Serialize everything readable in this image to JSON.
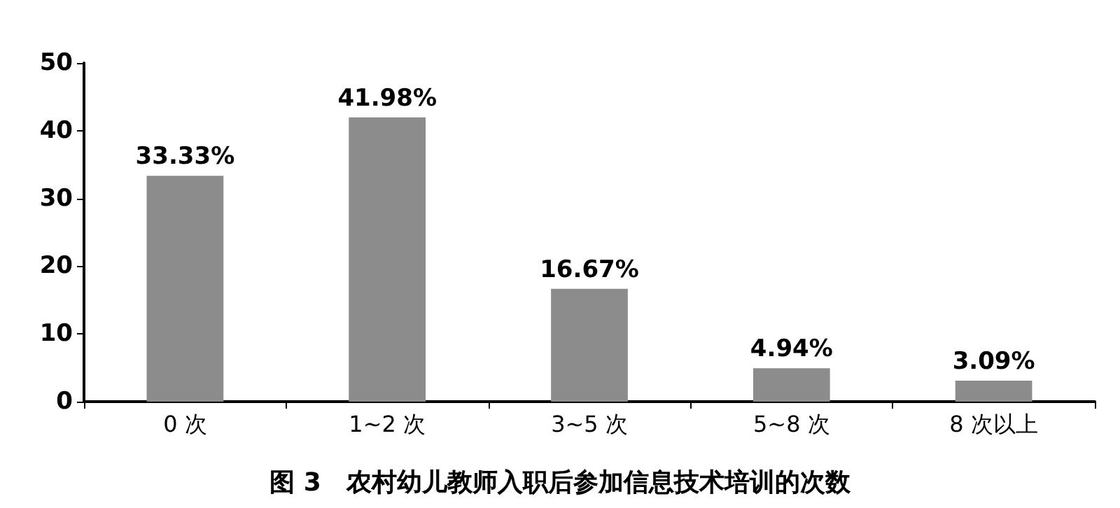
{
  "chart_data": {
    "type": "bar",
    "title": "图 3　农村幼儿教师入职后参加信息技术培训的次数",
    "categories": [
      "0 次",
      "1~2 次",
      "3~5 次",
      "5~8 次",
      "8 次以上"
    ],
    "values": [
      33.33,
      41.98,
      16.67,
      4.94,
      3.09
    ],
    "value_labels": [
      "33.33%",
      "41.98%",
      "16.67%",
      "4.94%",
      "3.09%"
    ],
    "color": "#8c8c8c",
    "ylim": [
      0,
      50
    ],
    "yticks": [
      0,
      10,
      20,
      30,
      40,
      50
    ],
    "grid": false
  }
}
